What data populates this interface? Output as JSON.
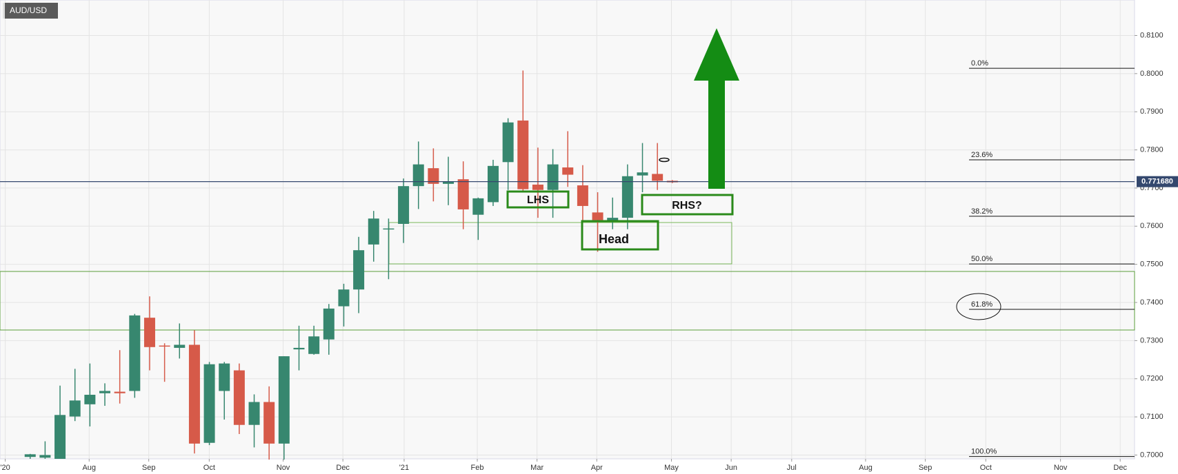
{
  "chart_data": {
    "type": "candlestick",
    "title": "AUD/USD",
    "open": [
      0.6995,
      0.6993,
      0.699,
      0.7101,
      0.7133,
      0.7162,
      0.7166,
      0.7168,
      0.736,
      0.7287,
      0.7281,
      0.7289,
      0.7032,
      0.7168,
      0.7222,
      0.7079,
      0.7139,
      0.703,
      0.7277,
      0.7265,
      0.7303,
      0.739,
      0.7434,
      0.7552,
      0.7592,
      0.7606,
      0.7705,
      0.7752,
      0.7711,
      0.7723,
      0.763,
      0.7663,
      0.7768,
      0.7877,
      0.7709,
      0.7695,
      0.7754,
      0.7707,
      0.7636,
      0.7612,
      0.7622,
      0.7733,
      0.7737,
      0.7719
    ],
    "high": [
      0.7003,
      0.7036,
      0.7182,
      0.7226,
      0.724,
      0.7188,
      0.7275,
      0.737,
      0.7416,
      0.7293,
      0.7345,
      0.7327,
      0.7244,
      0.7244,
      0.724,
      0.7159,
      0.718,
      0.7259,
      0.7339,
      0.7339,
      0.7396,
      0.7449,
      0.7572,
      0.764,
      0.762,
      0.7725,
      0.7822,
      0.7804,
      0.7782,
      0.777,
      0.7675,
      0.7774,
      0.7883,
      0.8008,
      0.7806,
      0.7802,
      0.7849,
      0.776,
      0.7689,
      0.7675,
      0.7762,
      0.7818,
      0.7818,
      0.7721
    ],
    "low": [
      0.699,
      0.699,
      0.699,
      0.7089,
      0.7075,
      0.7129,
      0.7135,
      0.715,
      0.7222,
      0.7192,
      0.7253,
      0.7004,
      0.7026,
      0.7093,
      0.7055,
      0.702,
      0.6988,
      0.6988,
      0.7222,
      0.7263,
      0.7263,
      0.7337,
      0.7372,
      0.7507,
      0.7461,
      0.7556,
      0.7645,
      0.7665,
      0.7655,
      0.7592,
      0.7564,
      0.7653,
      0.7695,
      0.7691,
      0.7622,
      0.7622,
      0.7703,
      0.761,
      0.7533,
      0.7592,
      0.7592,
      0.7689,
      0.7695,
      0.7713
    ],
    "close": [
      0.7002,
      0.7,
      0.7105,
      0.7143,
      0.7158,
      0.7168,
      0.7162,
      0.7366,
      0.7283,
      0.7285,
      0.7289,
      0.703,
      0.7238,
      0.724,
      0.7079,
      0.7139,
      0.703,
      0.7259,
      0.7281,
      0.7311,
      0.7384,
      0.7434,
      0.7537,
      0.762,
      0.7594,
      0.7705,
      0.7762,
      0.7711,
      0.7717,
      0.7644,
      0.7673,
      0.7758,
      0.7872,
      0.7697,
      0.7695,
      0.7762,
      0.7735,
      0.7653,
      0.7616,
      0.7622,
      0.7731,
      0.7741,
      0.7719,
      0.7715
    ],
    "up_color": "#37876f",
    "down_color": "#d65a49",
    "xlim": [
      -2.02,
      73.95
    ],
    "xticks": [
      {
        "value": -1.67,
        "label": "'20"
      },
      {
        "value": 3.95,
        "label": "Aug"
      },
      {
        "value": 7.94,
        "label": "Sep"
      },
      {
        "value": 11.99,
        "label": "Oct"
      },
      {
        "value": 16.94,
        "label": "Nov"
      },
      {
        "value": 20.94,
        "label": "Dec"
      },
      {
        "value": 25.04,
        "label": "'21"
      },
      {
        "value": 29.94,
        "label": "Feb"
      },
      {
        "value": 33.94,
        "label": "Mar"
      },
      {
        "value": 37.94,
        "label": "Apr"
      },
      {
        "value": 42.94,
        "label": "May"
      },
      {
        "value": 46.94,
        "label": "Jun"
      },
      {
        "value": 50.99,
        "label": "Jul"
      },
      {
        "value": 55.94,
        "label": "Aug"
      },
      {
        "value": 59.94,
        "label": "Sep"
      },
      {
        "value": 63.99,
        "label": "Oct"
      },
      {
        "value": 68.99,
        "label": "Nov"
      },
      {
        "value": 72.99,
        "label": "Dec"
      }
    ],
    "ylim": [
      0.699,
      0.8193
    ],
    "yticks": [
      {
        "value": 0.7,
        "label": "0.7000"
      },
      {
        "value": 0.71,
        "label": "0.7100"
      },
      {
        "value": 0.72,
        "label": "0.7200"
      },
      {
        "value": 0.73,
        "label": "0.7300"
      },
      {
        "value": 0.74,
        "label": "0.7400"
      },
      {
        "value": 0.75,
        "label": "0.7500"
      },
      {
        "value": 0.76,
        "label": "0.7600"
      },
      {
        "value": 0.77,
        "label": "0.7700"
      },
      {
        "value": 0.78,
        "label": "0.7800"
      },
      {
        "value": 0.79,
        "label": "0.7900"
      },
      {
        "value": 0.8,
        "label": "0.8000"
      },
      {
        "value": 0.81,
        "label": "0.8100"
      }
    ],
    "grid": true,
    "last_price": {
      "value": 0.77168,
      "label": "0.771680"
    },
    "fib_levels": [
      {
        "value": 0.8014,
        "label": "0.0%"
      },
      {
        "value": 0.7774,
        "label": "23.6%"
      },
      {
        "value": 0.7626,
        "label": "38.2%"
      },
      {
        "value": 0.7501,
        "label": "50.0%"
      },
      {
        "value": 0.7382,
        "label": "61.8%"
      },
      {
        "value": 0.6996,
        "label": "100.0%"
      }
    ],
    "annotations": [
      "LHS",
      "Head",
      "RHS?"
    ]
  }
}
